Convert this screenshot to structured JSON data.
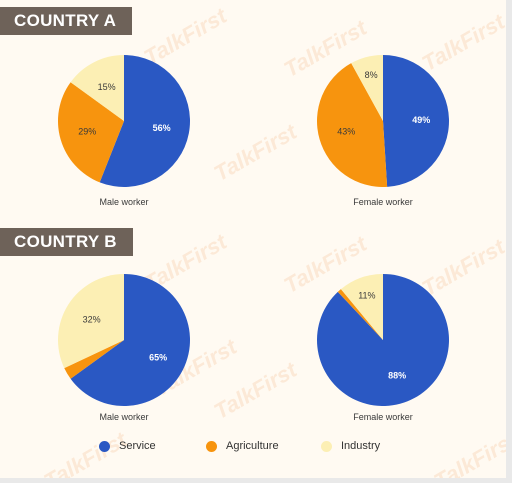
{
  "colors": {
    "service": "#2a58c3",
    "agriculture": "#f7940e",
    "industry": "#fcefb4",
    "label_bg": "#6e6259",
    "background": "#fffaf2"
  },
  "watermark_text": "TalkFirst",
  "sections": {
    "a_label": "COUNTRY A",
    "b_label": "COUNTRY B"
  },
  "legend": [
    {
      "key": "service",
      "label": "Service"
    },
    {
      "key": "agriculture",
      "label": "Agriculture"
    },
    {
      "key": "industry",
      "label": "Industry"
    }
  ],
  "chart_data": [
    {
      "type": "pie",
      "group": "COUNTRY A",
      "title": "Male worker",
      "slices": [
        {
          "label": "Service",
          "value": 56,
          "display": "56%"
        },
        {
          "label": "Agriculture",
          "value": 29,
          "display": "29%"
        },
        {
          "label": "Industry",
          "value": 15,
          "display": "15%"
        }
      ]
    },
    {
      "type": "pie",
      "group": "COUNTRY A",
      "title": "Female worker",
      "slices": [
        {
          "label": "Service",
          "value": 49,
          "display": "49%"
        },
        {
          "label": "Agriculture",
          "value": 43,
          "display": "43%"
        },
        {
          "label": "Industry",
          "value": 8,
          "display": "8%"
        }
      ]
    },
    {
      "type": "pie",
      "group": "COUNTRY B",
      "title": "Male worker",
      "slices": [
        {
          "label": "Service",
          "value": 65,
          "display": "65%"
        },
        {
          "label": "Agriculture",
          "value": 3,
          "display": ""
        },
        {
          "label": "Industry",
          "value": 32,
          "display": "32%"
        }
      ]
    },
    {
      "type": "pie",
      "group": "COUNTRY B",
      "title": "Female worker",
      "slices": [
        {
          "label": "Service",
          "value": 88,
          "display": "88%"
        },
        {
          "label": "Agriculture",
          "value": 1,
          "display": ""
        },
        {
          "label": "Industry",
          "value": 11,
          "display": "11%"
        }
      ]
    }
  ]
}
